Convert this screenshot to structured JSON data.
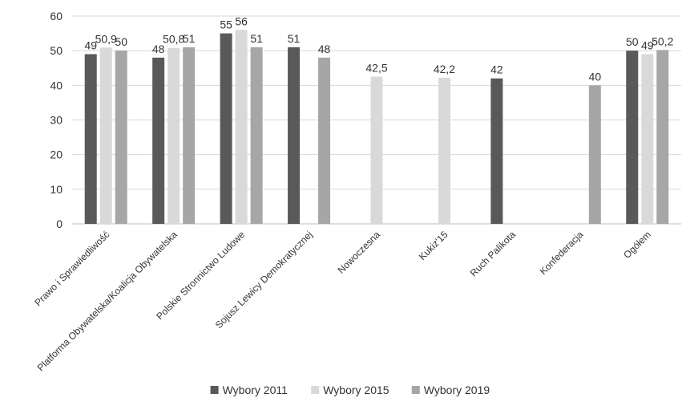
{
  "chart_data": {
    "type": "bar",
    "title": "",
    "xlabel": "",
    "ylabel": "",
    "ylim": [
      0,
      60
    ],
    "yticks": [
      "0",
      "10",
      "20",
      "30",
      "40",
      "50",
      "60"
    ],
    "grid": true,
    "legend_position": "bottom",
    "categories": [
      "Prawo i Sprawiedliwość",
      "Platforma Obywatelska/Koalicja Obywatelska",
      "Polskie Stronnictwo Ludowe",
      "Sojusz Lewicy Demokratycznej",
      "Nowoczesna",
      "Kukiz'15",
      "Ruch Palikota",
      "Konfederacja",
      "Ogółem"
    ],
    "series": [
      {
        "name": "Wybory 2011",
        "color": "#595959",
        "values": [
          49,
          48,
          55,
          51,
          null,
          null,
          42,
          null,
          50
        ],
        "labels": [
          "49",
          "48",
          "55",
          "51",
          null,
          null,
          "42",
          null,
          "50"
        ]
      },
      {
        "name": "Wybory 2015",
        "color": "#d9d9d9",
        "values": [
          50.9,
          50.8,
          56,
          null,
          42.5,
          42.2,
          null,
          null,
          49
        ],
        "labels": [
          "50,9",
          "50,8",
          "56",
          null,
          "42,5",
          "42,2",
          null,
          null,
          "49"
        ]
      },
      {
        "name": "Wybory 2019",
        "color": "#a6a6a6",
        "values": [
          50,
          51,
          51,
          48,
          null,
          null,
          null,
          40,
          50.2
        ],
        "labels": [
          "50",
          "51",
          "51",
          "48",
          null,
          null,
          null,
          "40",
          "50,2"
        ]
      }
    ]
  }
}
